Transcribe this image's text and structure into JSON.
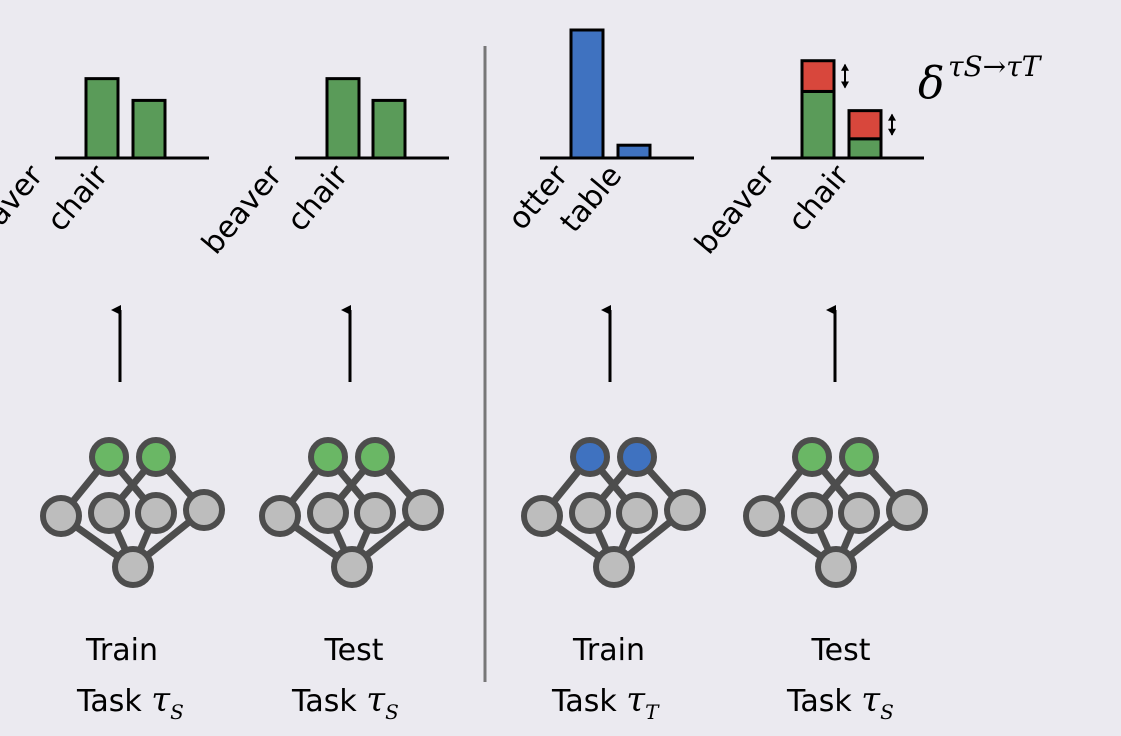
{
  "colors": {
    "background": "#ebeaf0",
    "green": "#5a9b59",
    "green_node": "#6ab765",
    "blue": "#3f72c0",
    "blue_node": "#3f72c0",
    "red": "#d8473c",
    "node_gray": "#bdbdbd",
    "node_stroke": "#4d4d4d",
    "divider": "#777777"
  },
  "panels": [
    {
      "id": "train-source",
      "output_color": "green",
      "bars": [
        {
          "label": "beaver",
          "value": 0.62,
          "color": "green"
        },
        {
          "label": "chair",
          "value": 0.45,
          "color": "green"
        }
      ],
      "caption": {
        "line1": "Train",
        "line2_prefix": "Task ",
        "task_symbol": "τ",
        "task_subscript": "S"
      }
    },
    {
      "id": "test-source",
      "output_color": "green",
      "bars": [
        {
          "label": "beaver",
          "value": 0.62,
          "color": "green"
        },
        {
          "label": "chair",
          "value": 0.45,
          "color": "green"
        }
      ],
      "caption": {
        "line1": "Test",
        "line2_prefix": "Task ",
        "task_symbol": "τ",
        "task_subscript": "S"
      }
    },
    {
      "id": "train-target",
      "output_color": "blue",
      "bars": [
        {
          "label": "otter",
          "value": 1.0,
          "color": "blue"
        },
        {
          "label": "table",
          "value": 0.1,
          "color": "blue"
        }
      ],
      "caption": {
        "line1": "Train",
        "line2_prefix": "Task ",
        "task_symbol": "τ",
        "task_subscript": "T"
      }
    },
    {
      "id": "test-after-target",
      "output_color": "green",
      "bars": [
        {
          "label": "beaver",
          "value": 0.52,
          "delta": 0.24,
          "color": "green"
        },
        {
          "label": "chair",
          "value": 0.15,
          "delta": 0.22,
          "color": "green"
        }
      ],
      "caption": {
        "line1": "Test",
        "line2_prefix": "Task ",
        "task_symbol": "τ",
        "task_subscript": "S"
      }
    }
  ],
  "delta_label": {
    "symbol": "δ",
    "superscript": "τS→τT"
  }
}
